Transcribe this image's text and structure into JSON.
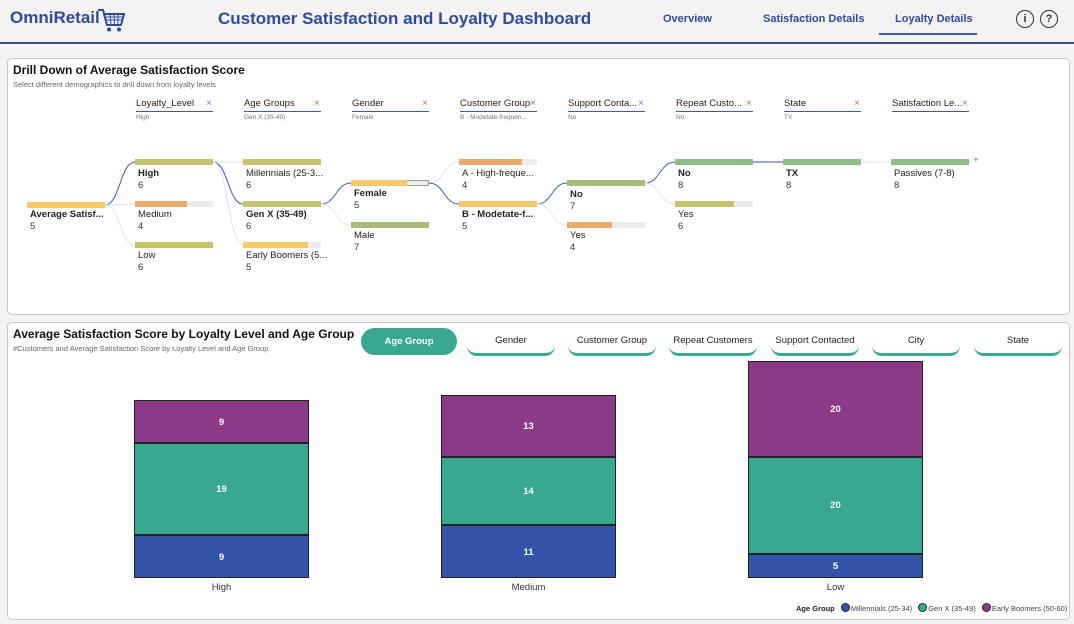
{
  "header": {
    "logo": "OmniRetail",
    "title": "Customer Satisfaction and Loyalty Dashboard",
    "nav": [
      "Overview",
      "Satisfaction Details",
      "Loyalty Details"
    ],
    "active_nav": "Loyalty Details",
    "info_glyph": "i",
    "help_glyph": "?"
  },
  "tree": {
    "title": "Drill Down of Average Satisfaction Score",
    "subtitle": "Select different demographics to drill down from loyalty levels",
    "levels": [
      {
        "label": "Loyalty_Level",
        "selected": "High"
      },
      {
        "label": "Age Groups",
        "selected": "Gen X (35-49)"
      },
      {
        "label": "Gender",
        "selected": "Female"
      },
      {
        "label": "Customer Group",
        "selected": "B - Modetate-frequen..."
      },
      {
        "label": "Support Conta...",
        "selected": "No"
      },
      {
        "label": "Repeat Custo...",
        "selected": "No"
      },
      {
        "label": "State",
        "selected": "TX"
      },
      {
        "label": "Satisfaction Le...",
        "selected": ""
      }
    ],
    "root": {
      "name": "Average Satisf...",
      "value": "5"
    },
    "nodes": [
      {
        "name": "High",
        "value": "6"
      },
      {
        "name": "Medium",
        "value": "4"
      },
      {
        "name": "Low",
        "value": "6"
      },
      {
        "name": "Millennials (25-3...",
        "value": "6"
      },
      {
        "name": "Gen X (35-49)",
        "value": "6"
      },
      {
        "name": "Early Boomers (5...",
        "value": "5"
      },
      {
        "name": "Female",
        "value": "5"
      },
      {
        "name": "Male",
        "value": "7"
      },
      {
        "name": "A - High-freque...",
        "value": "4"
      },
      {
        "name": "B - Modetate-f...",
        "value": "5"
      },
      {
        "name": "No",
        "value": "7"
      },
      {
        "name": "Yes",
        "value": "4"
      },
      {
        "name": "No",
        "value": "8"
      },
      {
        "name": "Yes",
        "value": "6"
      },
      {
        "name": "TX",
        "value": "8"
      },
      {
        "name": "Passives (7-8)",
        "value": "8"
      }
    ],
    "colors": {
      "yellow": "#f5c96a",
      "orange": "#eaaa6c",
      "olive": "#c5c26e",
      "sage": "#a9bb78",
      "green": "#8dbd87"
    }
  },
  "chart_section": {
    "title": "Average Satisfaction Score by Loyalty Level and Age Group",
    "subtitle": "#Customers and Average Satisfaction Score by Loyalty Level and Age Group",
    "chips": [
      "Age Group",
      "Gender",
      "Customer Group",
      "Repeat Customers",
      "Support Contacted",
      "City",
      "State"
    ],
    "active_chip": "Age Group"
  },
  "chart_data": {
    "type": "bar",
    "stacked": true,
    "categories": [
      "High",
      "Medium",
      "Low"
    ],
    "series": [
      {
        "name": "Millennials (25-34)",
        "values": [
          9,
          11,
          5
        ],
        "color": "#3354a8"
      },
      {
        "name": "Gen X (35-49)",
        "values": [
          19,
          14,
          20
        ],
        "color": "#38a891"
      },
      {
        "name": "Early Boomers (50-60)",
        "values": [
          9,
          13,
          20
        ],
        "color": "#8a3a86"
      }
    ],
    "legend_title": "Age Group",
    "legend_position": "bottom-right",
    "ylim": [
      0,
      45
    ]
  }
}
